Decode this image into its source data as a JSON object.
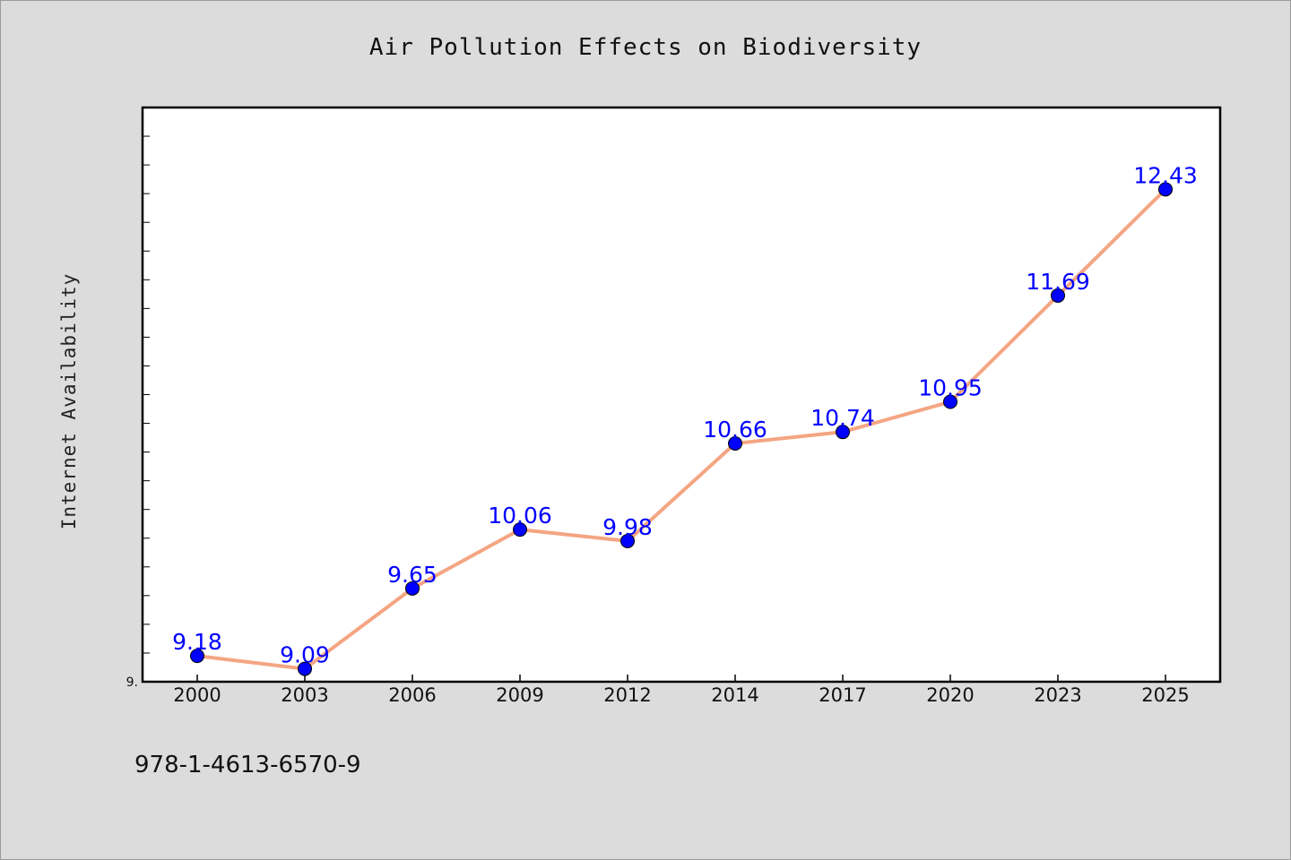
{
  "chart_data": {
    "type": "line",
    "title": "Air Pollution Effects on Biodiversity",
    "xlabel": "",
    "ylabel": "Internet Availability",
    "categories": [
      "2000",
      "2003",
      "2006",
      "2009",
      "2012",
      "2014",
      "2017",
      "2020",
      "2023",
      "2025"
    ],
    "series": [
      {
        "values": [
          9.18,
          9.09,
          9.65,
          10.06,
          9.98,
          10.66,
          10.74,
          10.95,
          11.69,
          12.43
        ],
        "line_color": "#f4a582",
        "marker_color": "#0000ff"
      }
    ],
    "data_labels": [
      "9.18",
      "9.09",
      "9.65",
      "10.06",
      "9.98",
      "10.66",
      "10.74",
      "10.95",
      "11.69",
      "12.43"
    ],
    "y_tick_label": "9.",
    "ylim": [
      9.0,
      13.0
    ],
    "grid": false,
    "legend": "none"
  },
  "footer_text": "978-1-4613-6570-9"
}
